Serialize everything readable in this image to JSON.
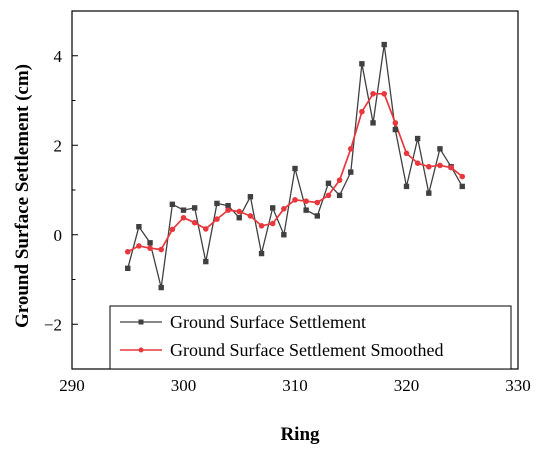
{
  "chart_data": {
    "type": "line",
    "title": "",
    "xlabel": "Ring",
    "ylabel": "Ground Surface Settlement (cm)",
    "xlim": [
      290,
      330
    ],
    "ylim": [
      -3,
      5
    ],
    "xticks": [
      290,
      300,
      310,
      320,
      330
    ],
    "yticks": [
      -2,
      0,
      2,
      4
    ],
    "xtick_labels": [
      "290",
      "300",
      "310",
      "320",
      "330"
    ],
    "ytick_labels": [
      "−2",
      "0",
      "2",
      "4"
    ],
    "grid": false,
    "legend_position": "bottom-center",
    "series": [
      {
        "name": "Ground Surface Settlement",
        "color": "#404040",
        "marker": "square",
        "x": [
          295,
          296,
          297,
          298,
          299,
          300,
          301,
          302,
          303,
          304,
          305,
          306,
          307,
          308,
          309,
          310,
          311,
          312,
          313,
          314,
          315,
          316,
          317,
          318,
          319,
          320,
          321,
          322,
          323,
          324,
          325
        ],
        "y": [
          -0.75,
          0.18,
          -0.18,
          -1.18,
          0.68,
          0.55,
          0.6,
          -0.6,
          0.7,
          0.65,
          0.38,
          0.85,
          -0.42,
          0.6,
          0.0,
          1.48,
          0.55,
          0.42,
          1.15,
          0.88,
          1.4,
          3.82,
          2.5,
          4.25,
          2.35,
          1.08,
          2.15,
          0.93,
          1.92,
          1.52,
          1.08
        ]
      },
      {
        "name": "Ground Surface Settlement Smoothed",
        "color": "#e8383d",
        "marker": "circle",
        "x": [
          295,
          296,
          297,
          298,
          299,
          300,
          301,
          302,
          303,
          304,
          305,
          306,
          307,
          308,
          309,
          310,
          311,
          312,
          313,
          314,
          315,
          316,
          317,
          318,
          319,
          320,
          321,
          322,
          323,
          324,
          325
        ],
        "y": [
          -0.38,
          -0.25,
          -0.3,
          -0.33,
          0.12,
          0.38,
          0.27,
          0.13,
          0.35,
          0.55,
          0.52,
          0.42,
          0.2,
          0.25,
          0.58,
          0.78,
          0.75,
          0.72,
          0.88,
          1.22,
          1.92,
          2.75,
          3.15,
          3.15,
          2.5,
          1.82,
          1.6,
          1.52,
          1.55,
          1.5,
          1.3
        ]
      }
    ]
  }
}
